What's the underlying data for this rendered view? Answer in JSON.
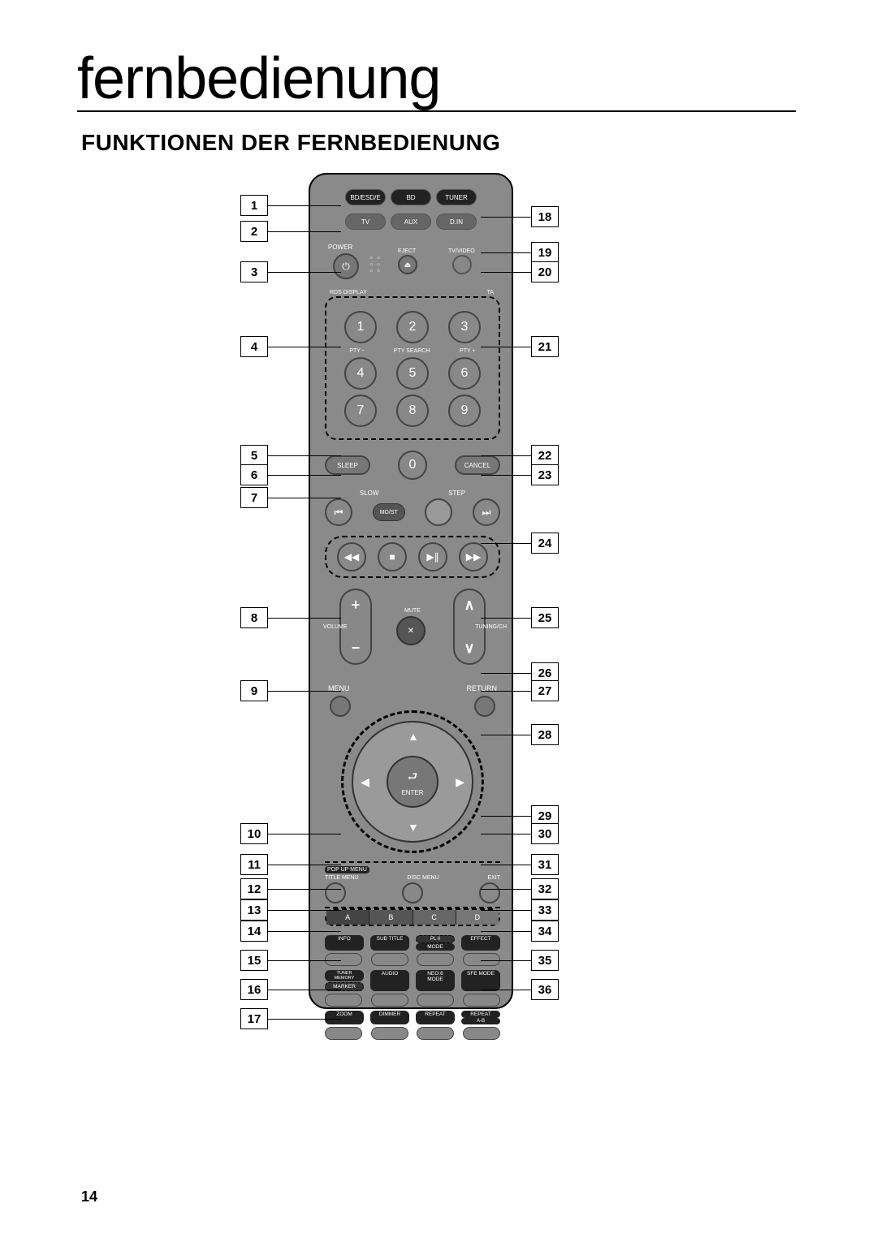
{
  "page": {
    "title": "fernbedienung",
    "section_title": "FUNKTIONEN DER FERNBEDIENUNG",
    "page_number": "14"
  },
  "callouts_left": [
    "1",
    "2",
    "3",
    "4",
    "5",
    "6",
    "7",
    "8",
    "9",
    "10",
    "11",
    "12",
    "13",
    "14",
    "15",
    "16",
    "17"
  ],
  "callouts_right": [
    "18",
    "19",
    "20",
    "21",
    "22",
    "23",
    "24",
    "25",
    "26",
    "27",
    "28",
    "29",
    "30",
    "31",
    "32",
    "33",
    "34",
    "35",
    "36"
  ],
  "callout_left_tops": [
    240,
    272,
    322,
    414,
    548,
    572,
    600,
    748,
    838,
    1014,
    1052,
    1082,
    1108,
    1134,
    1170,
    1206,
    1242
  ],
  "callout_right_tops": [
    254,
    298,
    322,
    414,
    548,
    572,
    656,
    748,
    816,
    838,
    892,
    992,
    1014,
    1052,
    1082,
    1108,
    1134,
    1170,
    1206
  ],
  "remote": {
    "top_row1": [
      "BD/ESD/E",
      "BD",
      "TUNER"
    ],
    "top_row2": [
      "TV",
      "AUX",
      "D.IN"
    ],
    "power_label": "POWER",
    "eject_label": "EJECT",
    "tvvideo_label": "TV/VIDEO",
    "rds_label": "RDS DISPLAY",
    "ta_label": "TA",
    "pty_minus": "PTY -",
    "pty_search": "PTY SEARCH",
    "pty_plus": "PTY +",
    "keypad": [
      "1",
      "2",
      "3",
      "4",
      "5",
      "6",
      "7",
      "8",
      "9"
    ],
    "sleep": "SLEEP",
    "zero": "0",
    "cancel": "CANCEL",
    "slow": "SLOW",
    "step": "STEP",
    "most": "MO/ST",
    "mute_label": "MUTE",
    "volume_label": "VOLUME",
    "tuning_label": "TUNING/CH",
    "menu": "MENU",
    "return": "RETURN",
    "enter": "ENTER",
    "popup": "POP UP MENU",
    "title_menu": "TITLE MENU",
    "disc_menu": "DISC MENU",
    "exit": "EXIT",
    "colors": [
      "A",
      "B",
      "C",
      "D"
    ],
    "fn_row1": [
      "INFO",
      "SUB TITLE",
      "MODE",
      "EFFECT"
    ],
    "fn_row1_extra": "PL II",
    "fn_row2": [
      "TUNER MEMORY",
      "AUDIO",
      "NEO:6 MODE",
      "SFE MODE"
    ],
    "fn_row2_left": "MARKER",
    "fn_row3": [
      "ZOOM",
      "DIMMER",
      "REPEAT",
      "REPEAT"
    ],
    "fn_row3_extra": "A-B"
  }
}
